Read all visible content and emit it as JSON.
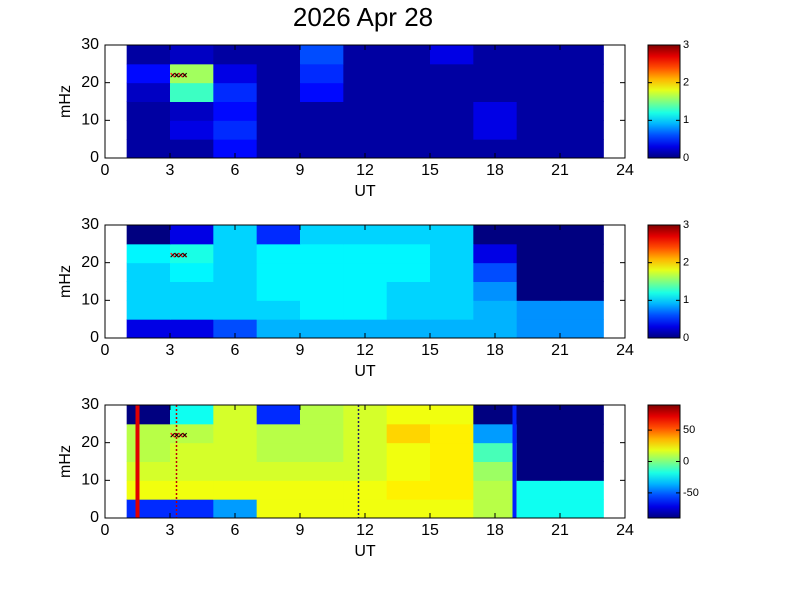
{
  "title": "2026 Apr 28",
  "chart_data": [
    {
      "type": "heatmap",
      "xlabel": "UT",
      "ylabel": "mHz",
      "xlim": [
        0,
        24
      ],
      "xticks": [
        0,
        3,
        6,
        9,
        12,
        15,
        18,
        21,
        24
      ],
      "ylim": [
        0,
        30
      ],
      "yticks": [
        0,
        10,
        20,
        30
      ],
      "xbins": [
        1,
        3,
        5,
        7,
        9,
        11,
        13,
        15,
        17,
        19,
        21,
        23
      ],
      "ybins": [
        0,
        5,
        10,
        15,
        20,
        25,
        30
      ],
      "z": [
        [
          0.1,
          0.1,
          0.4,
          0.1,
          0.1,
          0.1,
          0.1,
          0.1,
          0.1,
          0.1,
          0.1
        ],
        [
          0.1,
          0.3,
          0.5,
          0.1,
          0.1,
          0.1,
          0.1,
          0.1,
          0.3,
          0.1,
          0.1
        ],
        [
          0.1,
          0.2,
          0.4,
          0.1,
          0.1,
          0.1,
          0.1,
          0.1,
          0.3,
          0.1,
          0.1
        ],
        [
          0.2,
          1.3,
          0.5,
          0.1,
          0.4,
          0.1,
          0.1,
          0.1,
          0.1,
          0.1,
          0.1
        ],
        [
          0.4,
          1.6,
          0.3,
          0.1,
          0.5,
          0.1,
          0.1,
          0.1,
          0.1,
          0.1,
          0.1
        ],
        [
          0.1,
          0.2,
          0.1,
          0.1,
          0.6,
          0.1,
          0.1,
          0.3,
          0.1,
          0.1,
          0.1
        ]
      ],
      "clim": [
        0,
        3
      ],
      "cticks": [
        0,
        1,
        2,
        3
      ],
      "colormap": "jet",
      "markers": {
        "x": [
          3.4
        ],
        "y": [
          22
        ]
      }
    },
    {
      "type": "heatmap",
      "xlabel": "UT",
      "ylabel": "mHz",
      "xlim": [
        0,
        24
      ],
      "xticks": [
        0,
        3,
        6,
        9,
        12,
        15,
        18,
        21,
        24
      ],
      "ylim": [
        0,
        30
      ],
      "yticks": [
        0,
        10,
        20,
        30
      ],
      "xbins": [
        1,
        3,
        5,
        7,
        9,
        11,
        13,
        15,
        17,
        19,
        21,
        23
      ],
      "ybins": [
        0,
        5,
        10,
        15,
        20,
        25,
        30
      ],
      "z": [
        [
          0.3,
          0.3,
          0.6,
          0.9,
          0.9,
          0.9,
          0.9,
          0.9,
          0.9,
          0.8,
          0.8
        ],
        [
          1.0,
          1.0,
          1.0,
          1.0,
          1.1,
          1.1,
          1.0,
          1.0,
          0.9,
          0.8,
          0.8
        ],
        [
          1.0,
          1.0,
          1.0,
          1.1,
          1.1,
          1.1,
          1.0,
          1.0,
          0.8,
          0,
          0
        ],
        [
          1.0,
          1.1,
          1.0,
          1.1,
          1.1,
          1.1,
          1.1,
          1.0,
          0.6,
          0,
          0
        ],
        [
          1.1,
          1.2,
          1.0,
          1.1,
          1.1,
          1.1,
          1.1,
          1.0,
          0.3,
          0,
          0
        ],
        [
          0,
          0.3,
          1.0,
          0.5,
          1.0,
          1.0,
          1.0,
          1.0,
          0,
          0,
          0
        ]
      ],
      "clim": [
        0,
        3
      ],
      "cticks": [
        0,
        1,
        2,
        3
      ],
      "colormap": "jet",
      "markers": {
        "x": [
          3.4
        ],
        "y": [
          22
        ]
      }
    },
    {
      "type": "heatmap",
      "xlabel": "UT",
      "ylabel": "mHz",
      "xlim": [
        0,
        24
      ],
      "xticks": [
        0,
        3,
        6,
        9,
        12,
        15,
        18,
        21,
        24
      ],
      "ylim": [
        0,
        30
      ],
      "yticks": [
        0,
        10,
        20,
        30
      ],
      "xbins": [
        1,
        3,
        5,
        7,
        9,
        11,
        13,
        15,
        17,
        19,
        21,
        23
      ],
      "ybins": [
        0,
        5,
        10,
        15,
        20,
        25,
        30
      ],
      "z": [
        [
          -60,
          -60,
          -40,
          20,
          20,
          20,
          20,
          20,
          10,
          -20,
          -20
        ],
        [
          20,
          20,
          20,
          20,
          20,
          20,
          25,
          25,
          10,
          -20,
          -20
        ],
        [
          15,
          15,
          15,
          15,
          15,
          15,
          20,
          25,
          5,
          -90,
          -90
        ],
        [
          10,
          15,
          15,
          10,
          10,
          15,
          20,
          25,
          -10,
          -90,
          -90
        ],
        [
          10,
          10,
          15,
          10,
          10,
          15,
          30,
          25,
          -40,
          -90,
          -90
        ],
        [
          -90,
          -20,
          15,
          -60,
          10,
          15,
          20,
          20,
          -90,
          -90,
          -90
        ]
      ],
      "clim": [
        -90,
        90
      ],
      "cticks": [
        -50,
        0,
        50
      ],
      "colormap": "jet",
      "markers": {
        "x": [
          3.4
        ],
        "y": [
          22
        ]
      },
      "vlines": [
        {
          "x": 1.5,
          "color": "#e00000",
          "style": "solid"
        },
        {
          "x": 3.3,
          "color": "#c00000",
          "style": "dotted"
        },
        {
          "x": 11.7,
          "color": "#202060",
          "style": "dotted"
        },
        {
          "x": 18.9,
          "color": "#0020ff",
          "style": "solid"
        }
      ]
    }
  ]
}
